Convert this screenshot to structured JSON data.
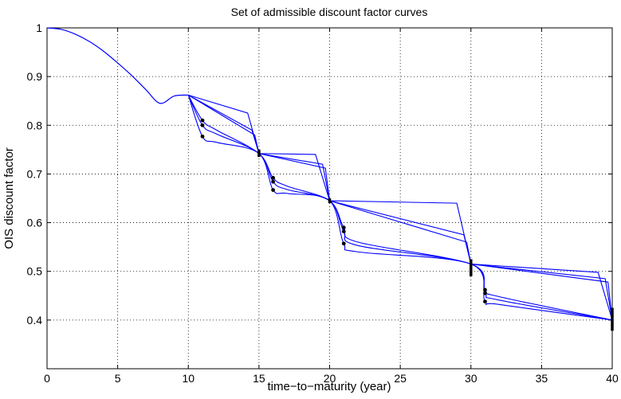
{
  "chart_data": {
    "type": "line",
    "title": "Set of admissible discount factor curves",
    "xlabel": "time−to−maturity (year)",
    "ylabel": "OIS discount factor",
    "xlim": [
      0,
      40
    ],
    "ylim": [
      0.3,
      1.0
    ],
    "grid": true,
    "xticks": [
      0,
      5,
      10,
      15,
      20,
      25,
      30,
      35,
      40
    ],
    "yticks": [
      0.4,
      0.5,
      0.6,
      0.7,
      0.8,
      0.9,
      1.0
    ],
    "xtick_labels": [
      "0",
      "5",
      "10",
      "15",
      "20",
      "25",
      "30",
      "35",
      "40"
    ],
    "ytick_labels": [
      "0.4",
      "0.5",
      "0.6",
      "0.7",
      "0.8",
      "0.9",
      "1"
    ],
    "line_color": "#0000ff",
    "common_curve": {
      "x": [
        0,
        1,
        2,
        3,
        4,
        5,
        6,
        7,
        8,
        9,
        10
      ],
      "y": [
        1.0,
        0.997,
        0.987,
        0.972,
        0.952,
        0.928,
        0.902,
        0.873,
        0.845,
        0.86,
        0.862
      ]
    },
    "series": [
      {
        "x": [
          10,
          14.2,
          15,
          19,
          20,
          29,
          30,
          39,
          40
        ],
        "y": [
          0.862,
          0.825,
          0.742,
          0.74,
          0.645,
          0.64,
          0.515,
          0.498,
          0.4
        ]
      },
      {
        "x": [
          10,
          14.5,
          15,
          19.5,
          20,
          29.5,
          30,
          39.5,
          40
        ],
        "y": [
          0.862,
          0.79,
          0.742,
          0.72,
          0.645,
          0.575,
          0.515,
          0.485,
          0.4
        ]
      },
      {
        "x": [
          10,
          14.7,
          15,
          19.7,
          20,
          29.7,
          30,
          39.7,
          40
        ],
        "y": [
          0.862,
          0.78,
          0.742,
          0.712,
          0.645,
          0.56,
          0.515,
          0.478,
          0.4
        ]
      },
      {
        "x": [
          10,
          11,
          12,
          15,
          16,
          17,
          20,
          21,
          22,
          30,
          31,
          32,
          40
        ],
        "y": [
          0.862,
          0.81,
          0.79,
          0.742,
          0.692,
          0.675,
          0.645,
          0.59,
          0.56,
          0.515,
          0.462,
          0.448,
          0.4
        ]
      },
      {
        "x": [
          10,
          11,
          12,
          15,
          16,
          17,
          20,
          21,
          22,
          30,
          31,
          32,
          40
        ],
        "y": [
          0.862,
          0.8,
          0.782,
          0.742,
          0.684,
          0.668,
          0.645,
          0.582,
          0.553,
          0.515,
          0.455,
          0.441,
          0.4
        ]
      },
      {
        "x": [
          10,
          11,
          12,
          15,
          16,
          17,
          20,
          21,
          22,
          30,
          31,
          32,
          40
        ],
        "y": [
          0.862,
          0.777,
          0.765,
          0.742,
          0.667,
          0.66,
          0.645,
          0.557,
          0.54,
          0.515,
          0.438,
          0.432,
          0.4
        ]
      }
    ],
    "dots": [
      {
        "x": 11,
        "y": 0.81
      },
      {
        "x": 11,
        "y": 0.8
      },
      {
        "x": 11,
        "y": 0.777
      },
      {
        "x": 16,
        "y": 0.692
      },
      {
        "x": 16,
        "y": 0.684
      },
      {
        "x": 16,
        "y": 0.667
      },
      {
        "x": 21,
        "y": 0.59
      },
      {
        "x": 21,
        "y": 0.582
      },
      {
        "x": 21,
        "y": 0.557
      },
      {
        "x": 31,
        "y": 0.462
      },
      {
        "x": 31,
        "y": 0.455
      },
      {
        "x": 31,
        "y": 0.438
      }
    ],
    "error_bars": [
      {
        "x": 15,
        "low": 0.735,
        "high": 0.75
      },
      {
        "x": 20,
        "low": 0.64,
        "high": 0.65
      },
      {
        "x": 30,
        "low": 0.49,
        "high": 0.525
      },
      {
        "x": 40,
        "low": 0.378,
        "high": 0.425
      }
    ]
  }
}
